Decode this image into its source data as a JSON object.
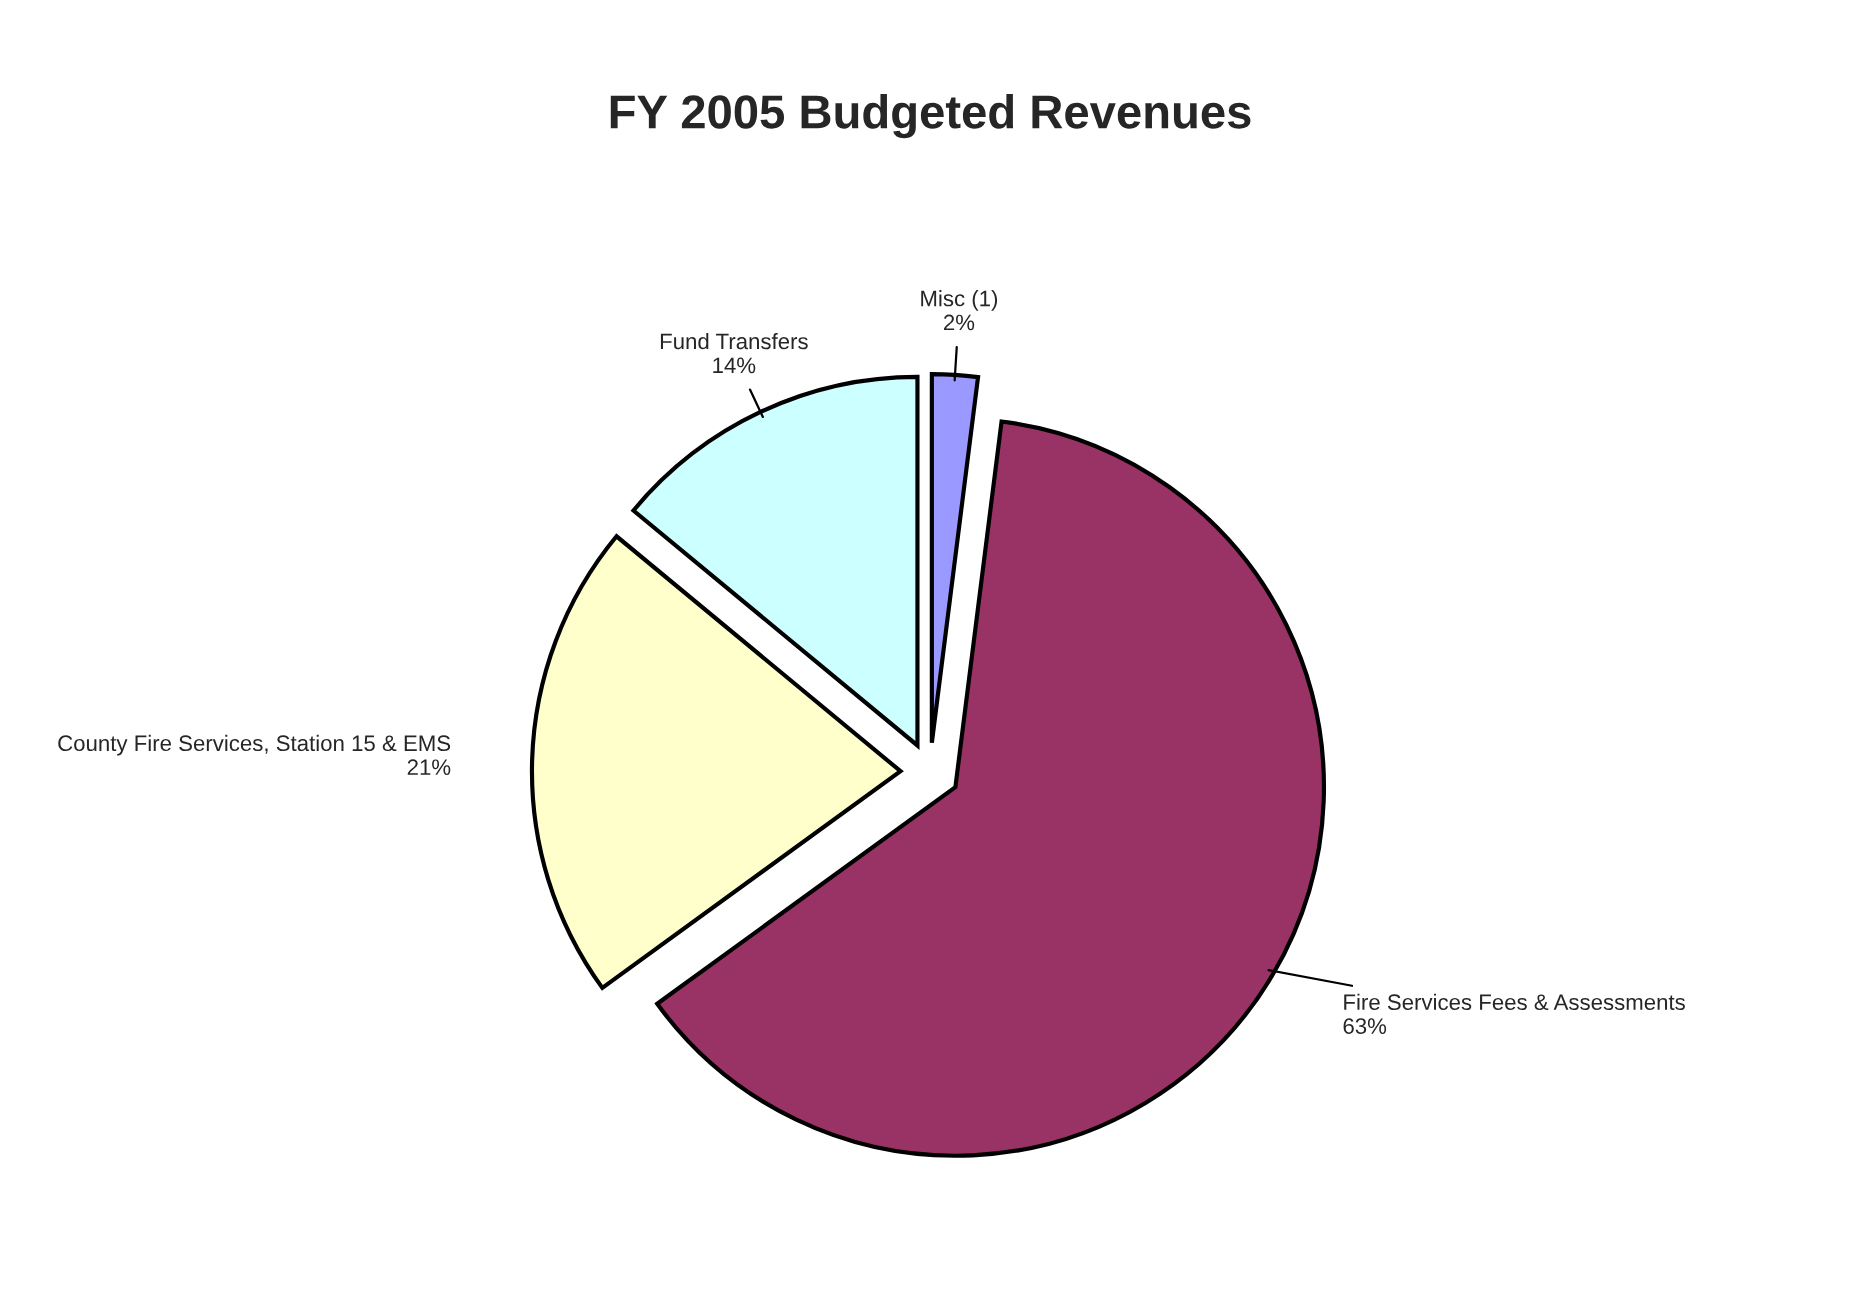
{
  "chart_data": {
    "type": "pie",
    "title": "FY 2005 Budgeted Revenues",
    "categories": [
      "Misc (1)",
      "Fire Services Fees & Assessments",
      "County Fire Services, Station 15 & EMS",
      "Fund Transfers"
    ],
    "values": [
      2,
      63,
      21,
      14
    ],
    "value_labels": [
      "2%",
      "63%",
      "21%",
      "14%"
    ],
    "colors": [
      "#9999ff",
      "#993366",
      "#ffffcc",
      "#ccffff"
    ]
  }
}
